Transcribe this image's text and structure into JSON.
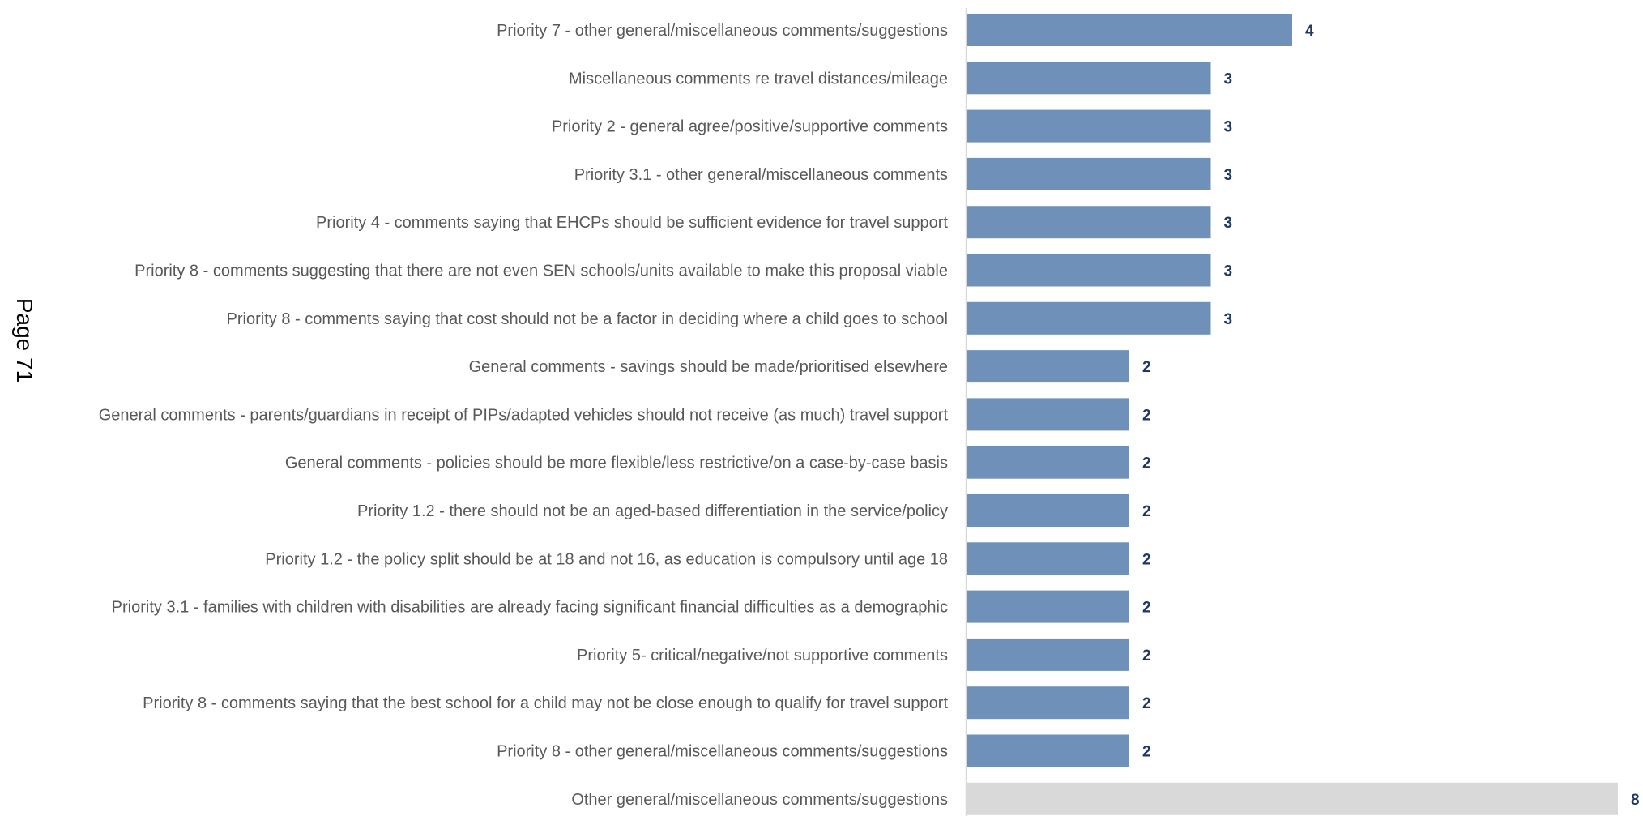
{
  "page": {
    "label": "Page 71"
  },
  "colors": {
    "bar": "#6f91b9",
    "other_bar": "#d9d9d9",
    "axis": "#d9d9d9",
    "category_text": "#595959",
    "value_text": "#1f3864"
  },
  "chart_data": {
    "type": "bar",
    "orientation": "horizontal",
    "title": "",
    "xlabel": "",
    "ylabel": "",
    "xlim": [
      0,
      8
    ],
    "grid": false,
    "legend": "none",
    "categories": [
      "Priority 7 - other general/miscellaneous comments/suggestions",
      "Miscellaneous comments re travel distances/mileage",
      "Priority 2 - general agree/positive/supportive comments",
      "Priority 3.1 - other general/miscellaneous comments",
      "Priority 4 - comments saying that EHCPs should be sufficient evidence for travel support",
      "Priority 8 - comments suggesting that there are not even SEN schools/units available to make this proposal viable",
      "Priority 8 - comments saying that cost should not be a factor in deciding where a child goes to school",
      "General comments - savings should be made/prioritised elsewhere",
      "General comments - parents/guardians in receipt of PIPs/adapted vehicles should not receive (as much) travel support",
      "General comments - policies should be more flexible/less restrictive/on a case-by-case basis",
      "Priority 1.2 - there should not be an aged-based differentiation in the service/policy",
      "Priority 1.2 - the policy split should be at 18 and not 16, as education is compulsory until age 18",
      "Priority 3.1 - families with children with disabilities are already facing significant financial difficulties as a demographic",
      "Priority 5- critical/negative/not supportive comments",
      "Priority 8 - comments saying that the best school for a child may not be close enough to qualify for travel support",
      "Priority 8 - other general/miscellaneous comments/suggestions",
      "Other general/miscellaneous comments/suggestions"
    ],
    "values": [
      4,
      3,
      3,
      3,
      3,
      3,
      3,
      2,
      2,
      2,
      2,
      2,
      2,
      2,
      2,
      2,
      8
    ],
    "highlight_last": true
  }
}
